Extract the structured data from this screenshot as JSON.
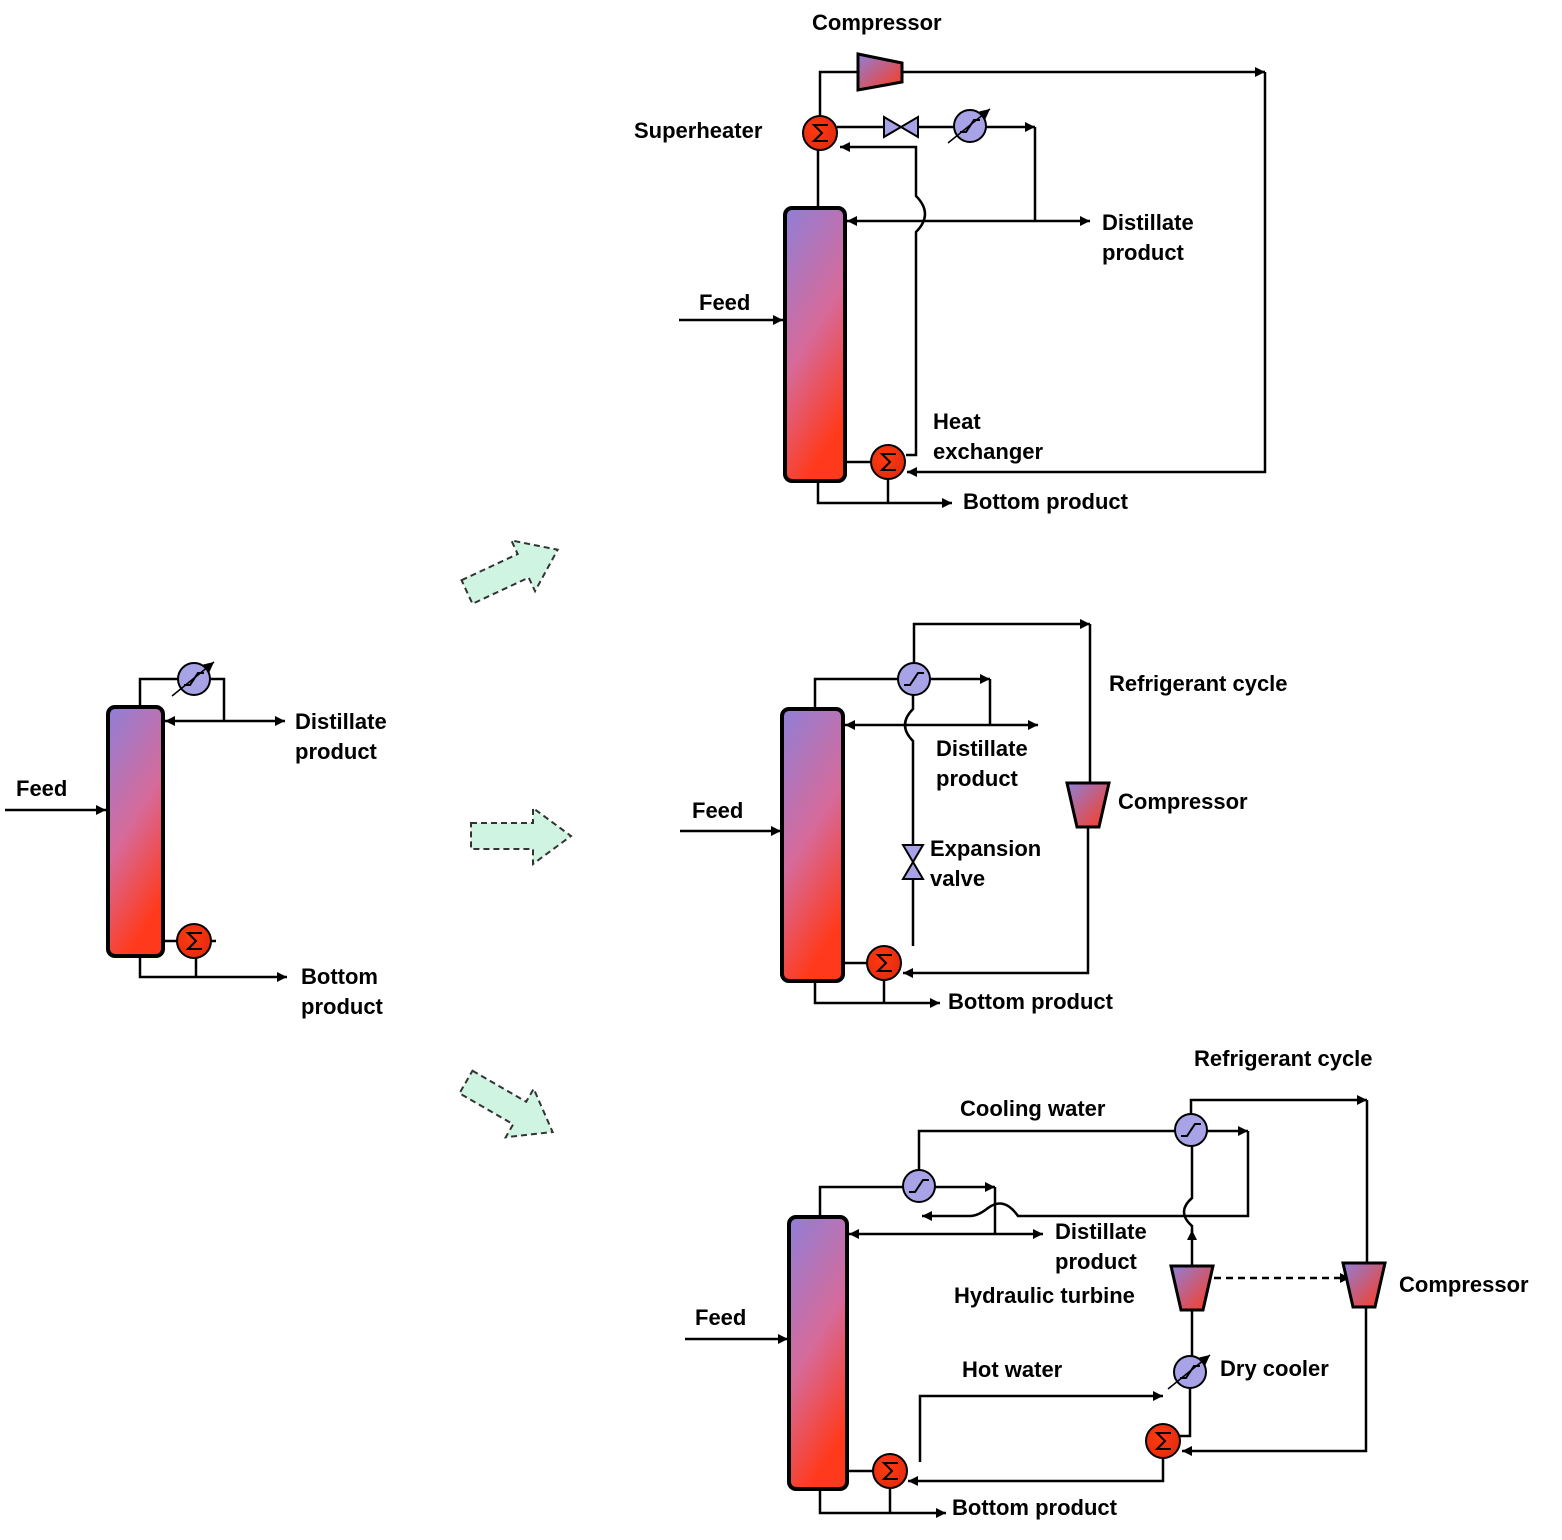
{
  "base": {
    "feed": "Feed",
    "distillate": [
      "Distillate",
      "product"
    ],
    "bottom": [
      "Bottom",
      "product"
    ]
  },
  "mvr": {
    "compressor": "Compressor",
    "superheater": "Superheater",
    "feed": "Feed",
    "distillate": [
      "Distillate",
      "product"
    ],
    "heat_exchanger": [
      "Heat",
      "exchanger"
    ],
    "bottom": "Bottom product"
  },
  "refrigerant": {
    "cycle": "Refrigerant cycle",
    "distillate": [
      "Distillate",
      "product"
    ],
    "compressor": "Compressor",
    "expansion_valve": [
      "Expansion",
      "valve"
    ],
    "feed": "Feed",
    "bottom": "Bottom product"
  },
  "refrigerant_recovery": {
    "cycle": "Refrigerant cycle",
    "cooling_water": "Cooling water",
    "distillate": [
      "Distillate",
      "product"
    ],
    "hydraulic_turbine": "Hydraulic turbine",
    "compressor": "Compressor",
    "hot_water": "Hot water",
    "dry_cooler": "Dry cooler",
    "feed": "Feed",
    "bottom": "Bottom product"
  }
}
